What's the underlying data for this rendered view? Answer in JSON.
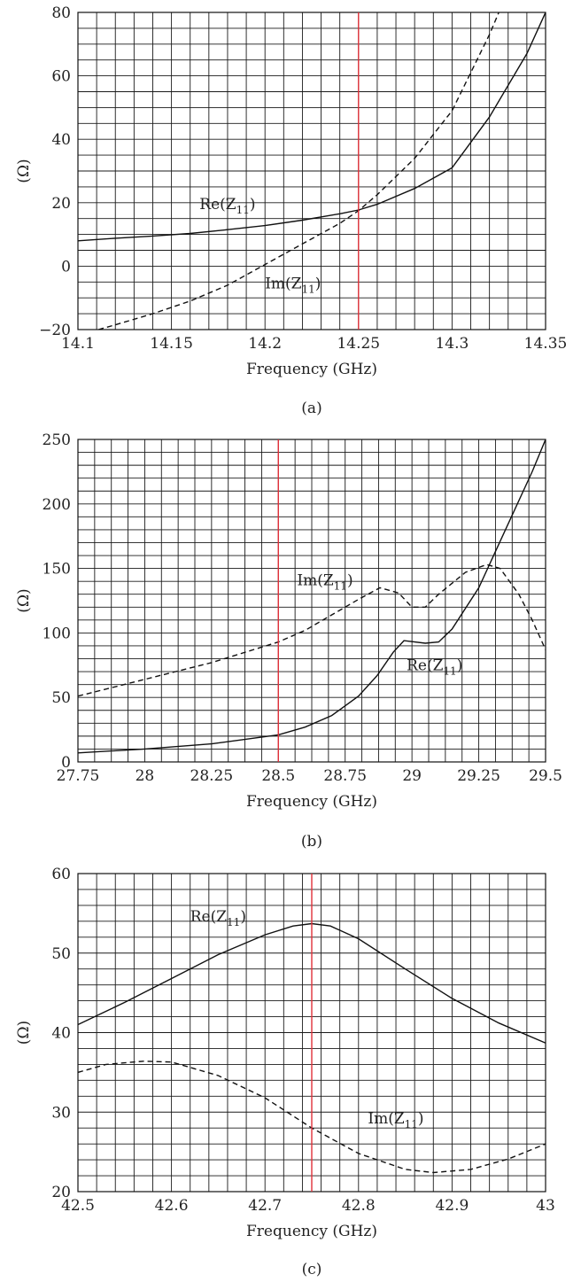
{
  "chart_data": [
    {
      "type": "line",
      "caption": "(a)",
      "xlabel": "Frequency (GHz)",
      "ylabel": "(Ω)",
      "xlim": [
        14.1,
        14.35
      ],
      "ylim": [
        -20,
        80
      ],
      "xticks": [
        14.1,
        14.15,
        14.2,
        14.25,
        14.3,
        14.35
      ],
      "xtick_labels": [
        "14.1",
        "14.15",
        "14.2",
        "14.25",
        "14.3",
        "14.35"
      ],
      "yticks": [
        -20,
        0,
        20,
        40,
        60,
        80
      ],
      "ytick_labels": [
        "−20",
        "0",
        "20",
        "40",
        "60",
        "80"
      ],
      "grid": true,
      "marker_line_x": 14.25,
      "marker_color": "#e0303a",
      "series": [
        {
          "name": "Re(Z11)",
          "style": "solid",
          "x": [
            14.1,
            14.12,
            14.14,
            14.16,
            14.18,
            14.2,
            14.22,
            14.24,
            14.25,
            14.26,
            14.28,
            14.3,
            14.32,
            14.34,
            14.35
          ],
          "y": [
            8,
            8.8,
            9.5,
            10.3,
            11.5,
            12.8,
            14.5,
            16.5,
            17.7,
            19.5,
            24.5,
            31,
            47,
            67,
            80
          ]
        },
        {
          "name": "Im(Z11)",
          "style": "dashed",
          "x": [
            14.111,
            14.12,
            14.14,
            14.16,
            14.18,
            14.2,
            14.22,
            14.24,
            14.25,
            14.26,
            14.28,
            14.3,
            14.31,
            14.32,
            14.325
          ],
          "y": [
            -20,
            -18.5,
            -15,
            -11,
            -6,
            0.5,
            7,
            13.5,
            17.5,
            22.5,
            34,
            49,
            61,
            73,
            80
          ]
        }
      ],
      "annotations": [
        {
          "label": "Re(Z",
          "sub": "11",
          "close": ")",
          "x": 14.165,
          "y": 18
        },
        {
          "label": "Im(Z",
          "sub": "11",
          "close": ")",
          "x": 14.2,
          "y": -7
        }
      ]
    },
    {
      "type": "line",
      "caption": "(b)",
      "xlabel": "Frequency (GHz)",
      "ylabel": "(Ω)",
      "xlim": [
        27.75,
        29.5
      ],
      "ylim": [
        0,
        250
      ],
      "xticks": [
        27.75,
        28,
        28.25,
        28.5,
        28.75,
        29,
        29.25,
        29.5
      ],
      "xtick_labels": [
        "27.75",
        "28",
        "28.25",
        "28.5",
        "28.75",
        "29",
        "29.25",
        "29.5"
      ],
      "yticks": [
        0,
        50,
        100,
        150,
        200,
        250
      ],
      "ytick_labels": [
        "0",
        "50",
        "100",
        "150",
        "200",
        "250"
      ],
      "grid": true,
      "marker_line_x": 28.5,
      "marker_color": "#e0303a",
      "series": [
        {
          "name": "Re(Z11)",
          "style": "solid",
          "x": [
            27.75,
            28,
            28.25,
            28.5,
            28.6,
            28.7,
            28.8,
            28.87,
            28.93,
            28.97,
            29.05,
            29.1,
            29.15,
            29.25,
            29.35,
            29.45,
            29.5
          ],
          "y": [
            7,
            10,
            14,
            21,
            27,
            36,
            51,
            67,
            85,
            94,
            92,
            93,
            103,
            135,
            180,
            225,
            250
          ]
        },
        {
          "name": "Im(Z11)",
          "style": "dashed",
          "x": [
            27.75,
            28,
            28.25,
            28.5,
            28.6,
            28.7,
            28.8,
            28.88,
            28.95,
            29.0,
            29.05,
            29.1,
            29.2,
            29.28,
            29.33,
            29.4,
            29.45,
            29.5
          ],
          "y": [
            51,
            64,
            77,
            93,
            102,
            114,
            126,
            135,
            131,
            120,
            120,
            130,
            147,
            153,
            150,
            130,
            110,
            87
          ]
        }
      ],
      "annotations": [
        {
          "label": "Im(Z",
          "sub": "11",
          "close": ")",
          "x": 28.57,
          "y": 137
        },
        {
          "label": "Re(Z",
          "sub": "11",
          "close": ")",
          "x": 28.98,
          "y": 71
        }
      ]
    },
    {
      "type": "line",
      "caption": "(c)",
      "xlabel": "Frequency (GHz)",
      "ylabel": "(Ω)",
      "xlim": [
        42.5,
        43
      ],
      "ylim": [
        20,
        60
      ],
      "xticks": [
        42.5,
        42.6,
        42.7,
        42.8,
        42.9,
        43
      ],
      "xtick_labels": [
        "42.5",
        "42.6",
        "42.7",
        "42.8",
        "42.9",
        "43"
      ],
      "yticks": [
        20,
        30,
        40,
        50,
        60
      ],
      "ytick_labels": [
        "20",
        "30",
        "40",
        "50",
        "60"
      ],
      "grid": true,
      "marker_line_x": 42.75,
      "marker_color": "#e0303a",
      "series": [
        {
          "name": "Re(Z11)",
          "style": "solid",
          "x": [
            42.5,
            42.55,
            42.6,
            42.65,
            42.7,
            42.73,
            42.75,
            42.77,
            42.8,
            42.85,
            42.9,
            42.95,
            43
          ],
          "y": [
            41,
            43.8,
            46.8,
            49.8,
            52.3,
            53.4,
            53.7,
            53.4,
            51.8,
            48,
            44.3,
            41.2,
            38.7
          ]
        },
        {
          "name": "Im(Z11)",
          "style": "dashed",
          "x": [
            42.5,
            42.53,
            42.57,
            42.6,
            42.65,
            42.7,
            42.75,
            42.8,
            42.85,
            42.88,
            42.92,
            42.96,
            43
          ],
          "y": [
            35,
            36,
            36.4,
            36.3,
            34.6,
            31.8,
            28,
            24.8,
            22.8,
            22.4,
            22.8,
            24.1,
            26
          ]
        }
      ],
      "annotations": [
        {
          "label": "Re(Z",
          "sub": "11",
          "close": ")",
          "x": 42.62,
          "y": 54
        },
        {
          "label": "Im(Z",
          "sub": "11",
          "close": ")",
          "x": 42.81,
          "y": 28.6
        }
      ]
    }
  ]
}
